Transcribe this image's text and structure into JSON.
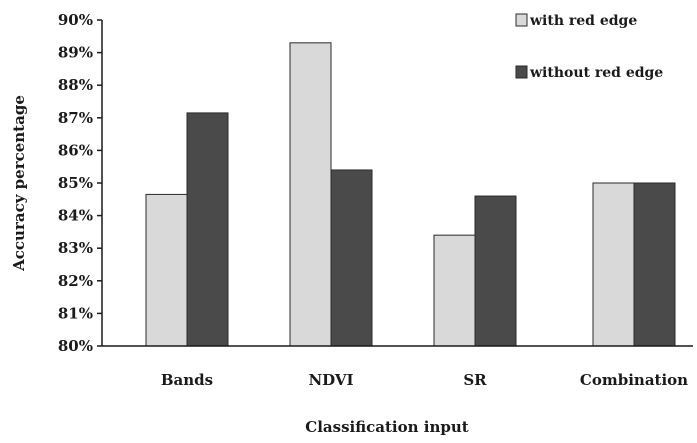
{
  "chart_data": {
    "type": "bar",
    "categories": [
      "Bands",
      "NDVI",
      "SR",
      "Combination"
    ],
    "series": [
      {
        "name": "with red edge",
        "values": [
          84.65,
          89.3,
          83.4,
          85.0
        ],
        "color": "#d9d9d9"
      },
      {
        "name": "without red edge",
        "values": [
          87.15,
          85.4,
          84.6,
          85.0
        ],
        "color": "#4a4a4a"
      }
    ],
    "ylim": [
      80,
      90
    ],
    "yticks": [
      "80%",
      "81%",
      "82%",
      "83%",
      "84%",
      "85%",
      "86%",
      "87%",
      "88%",
      "89%",
      "90%"
    ],
    "xlabel": "Classification input",
    "ylabel": "Accuracy percentage",
    "legend_position": "top-right",
    "grid": false
  }
}
